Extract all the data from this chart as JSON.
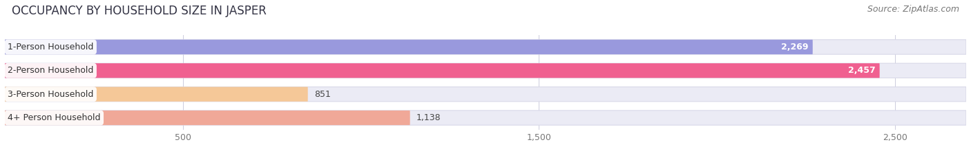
{
  "title": "OCCUPANCY BY HOUSEHOLD SIZE IN JASPER",
  "source": "Source: ZipAtlas.com",
  "categories": [
    "1-Person Household",
    "2-Person Household",
    "3-Person Household",
    "4+ Person Household"
  ],
  "values": [
    2269,
    2457,
    851,
    1138
  ],
  "bar_colors": [
    "#9999dd",
    "#f06090",
    "#f5c898",
    "#f0a898"
  ],
  "label_colors": [
    "white",
    "white",
    "dark",
    "dark"
  ],
  "x_max": 2700,
  "x_ticks": [
    500,
    1500,
    2500
  ],
  "background_color": "#ffffff",
  "bar_bg_color": "#ebebf5",
  "bar_border_color": "#d8d8e8",
  "title_fontsize": 12,
  "source_fontsize": 9,
  "tick_fontsize": 9,
  "label_fontsize": 9,
  "value_fontsize": 9
}
